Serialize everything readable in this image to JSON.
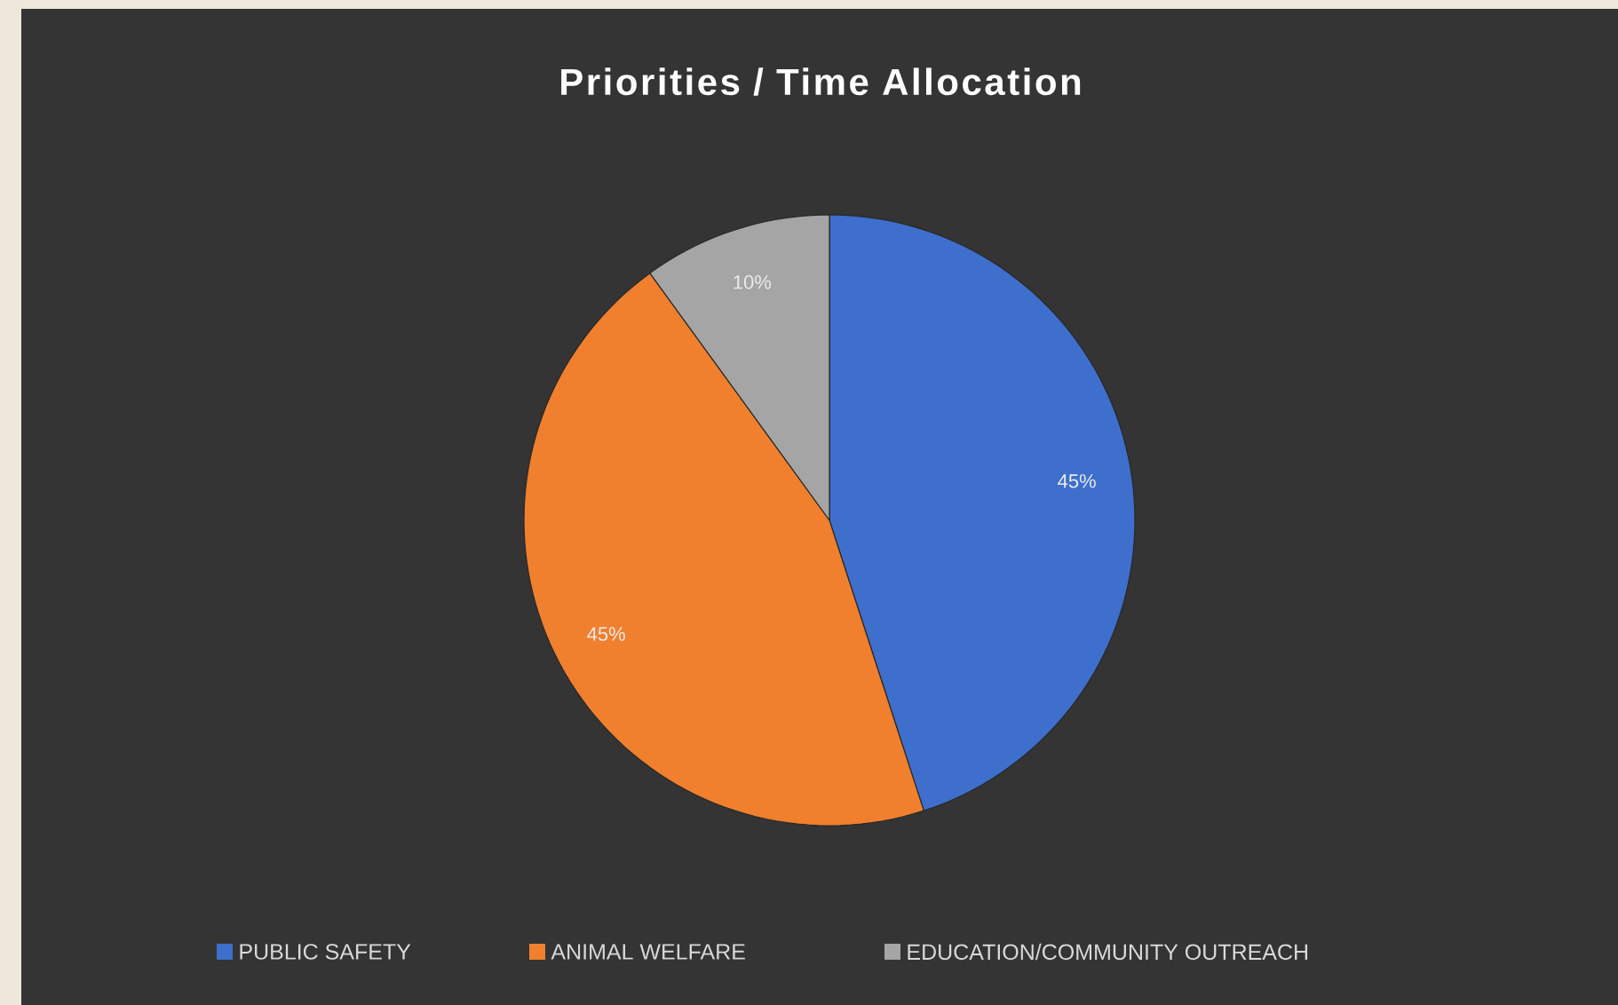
{
  "chart_data": {
    "type": "pie",
    "title": "Priorities / Time Allocation",
    "categories": [
      "PUBLIC SAFETY",
      "ANIMAL WELFARE",
      "EDUCATION/COMMUNITY OUTREACH"
    ],
    "values": [
      45,
      45,
      10
    ],
    "colors": [
      "#3f6fcc",
      "#f0802e",
      "#a5a5a5"
    ],
    "value_labels": [
      "45%",
      "45%",
      "10%"
    ],
    "legend": "bottom"
  }
}
